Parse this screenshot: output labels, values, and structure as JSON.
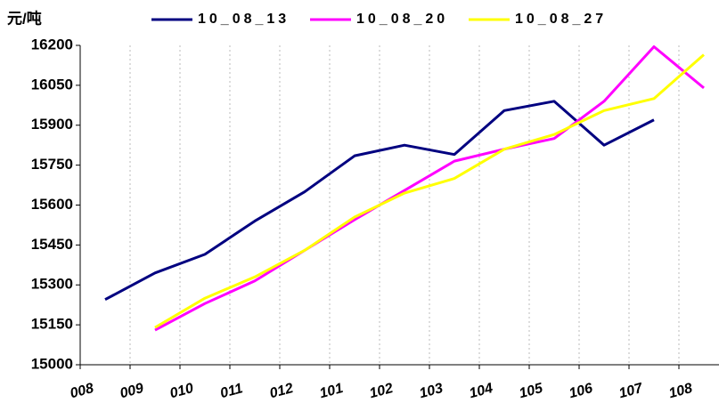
{
  "chart_data": {
    "type": "line",
    "y_label": "元/吨",
    "categories": [
      "008",
      "009",
      "010",
      "011",
      "012",
      "101",
      "102",
      "103",
      "104",
      "105",
      "106",
      "107",
      "108"
    ],
    "series": [
      {
        "name": "10_08_13",
        "color": "#000080",
        "values": [
          15245,
          15345,
          15415,
          15540,
          15650,
          15785,
          15825,
          15790,
          15955,
          15990,
          15825,
          15920,
          null
        ]
      },
      {
        "name": "10_08_20",
        "color": "#FF00FF",
        "values": [
          null,
          15130,
          15230,
          15315,
          15430,
          15545,
          15655,
          15765,
          15810,
          15850,
          15990,
          16195,
          16040
        ]
      },
      {
        "name": "10_08_27",
        "color": "#FFFF00",
        "values": [
          null,
          15140,
          15250,
          15330,
          15430,
          15555,
          15645,
          15700,
          15810,
          15865,
          15955,
          16000,
          16165
        ]
      }
    ],
    "ylim": [
      15000,
      16200
    ],
    "yticks": [
      15000,
      15150,
      15300,
      15450,
      15600,
      15750,
      15900,
      16050,
      16200
    ],
    "grid": true
  }
}
